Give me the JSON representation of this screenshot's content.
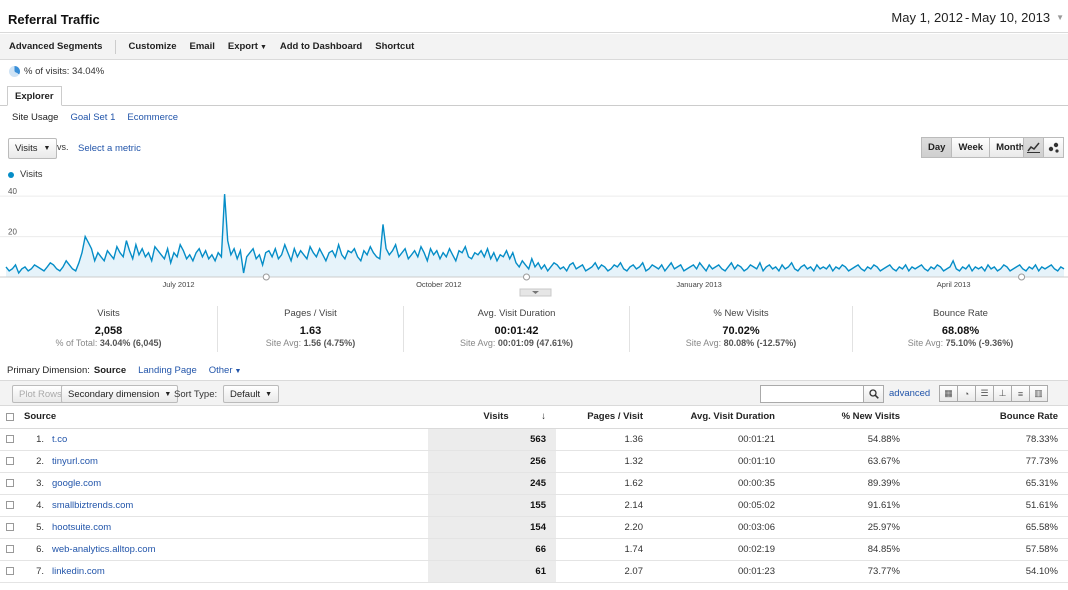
{
  "header": {
    "title": "Referral Traffic",
    "date_start": "May 1, 2012",
    "date_sep": "-",
    "date_end": "May 10, 2013"
  },
  "toolbar": {
    "advanced_segments": "Advanced Segments",
    "customize": "Customize",
    "email": "Email",
    "export": "Export",
    "add_to_dashboard": "Add to Dashboard",
    "shortcut": "Shortcut"
  },
  "segment_info": {
    "text": "% of visits: 34.04%"
  },
  "tabs": {
    "explorer": "Explorer"
  },
  "subtabs": {
    "site_usage": "Site Usage",
    "goal_set": "Goal Set 1",
    "ecommerce": "Ecommerce"
  },
  "controls": {
    "metric": "Visits",
    "vs": "vs.",
    "select_metric": "Select a metric",
    "day": "Day",
    "week": "Week",
    "month": "Month"
  },
  "chart_data": {
    "type": "line",
    "series": [
      {
        "name": "Visits"
      }
    ],
    "y_ticks": [
      "40",
      "20"
    ],
    "ylim": [
      0,
      46
    ],
    "x_tick_labels": [
      "July 2012",
      "October 2012",
      "January 2013",
      "April 2013"
    ],
    "x_range": [
      "2012-05-01",
      "2013-05-10"
    ],
    "y": [
      5,
      3,
      4,
      6,
      2,
      4,
      5,
      3,
      4,
      6,
      5,
      4,
      3,
      5,
      7,
      6,
      4,
      3,
      5,
      8,
      6,
      4,
      3,
      7,
      12,
      20,
      17,
      14,
      8,
      12,
      10,
      8,
      13,
      11,
      9,
      15,
      12,
      10,
      18,
      13,
      9,
      16,
      11,
      14,
      10,
      12,
      8,
      15,
      13,
      11,
      9,
      14,
      7,
      12,
      10,
      16,
      13,
      9,
      11,
      8,
      12,
      14,
      10,
      13,
      9,
      11,
      8,
      12,
      10,
      41,
      18,
      11,
      14,
      9,
      13,
      2,
      10,
      12,
      14,
      9,
      11,
      6,
      12,
      13,
      10,
      14,
      9,
      11,
      16,
      12,
      8,
      14,
      10,
      13,
      11,
      9,
      15,
      12,
      10,
      14,
      11,
      8,
      12,
      13,
      10,
      16,
      11,
      9,
      13,
      12,
      14,
      10,
      8,
      13,
      11,
      15,
      12,
      10,
      9,
      26,
      14,
      11,
      13,
      16,
      10,
      12,
      14,
      9,
      11,
      13,
      10,
      15,
      12,
      8,
      14,
      11,
      13,
      9,
      12,
      10,
      14,
      11,
      8,
      13,
      12,
      15,
      10,
      9,
      12,
      11,
      13,
      10,
      14,
      9,
      12,
      8,
      11,
      10,
      13,
      9,
      12,
      7,
      5,
      8,
      6,
      4,
      9,
      5,
      7,
      4,
      6,
      3,
      5,
      7,
      6,
      4,
      5,
      3,
      6,
      7,
      4,
      5,
      6,
      3,
      4,
      5,
      7,
      4,
      6,
      5,
      3,
      4,
      6,
      5,
      7,
      4,
      3,
      5,
      6,
      4,
      5,
      7,
      3,
      4,
      6,
      5,
      4,
      6,
      3,
      5,
      7,
      4,
      5,
      6,
      3,
      4,
      5,
      6,
      4,
      7,
      5,
      3,
      6,
      4,
      5,
      6,
      4,
      3,
      5,
      7,
      4,
      6,
      5,
      3,
      4,
      6,
      5,
      4,
      7,
      3,
      5,
      6,
      4,
      5,
      3,
      6,
      4,
      5,
      7,
      4,
      3,
      5,
      6,
      4,
      5,
      3,
      6,
      4,
      5,
      4,
      6,
      3,
      5,
      4,
      6,
      5,
      3,
      4,
      5,
      6,
      4,
      3,
      5,
      4,
      6,
      5,
      3,
      4,
      5,
      6,
      4,
      3,
      5,
      4,
      6,
      3,
      5,
      4,
      5,
      6,
      4,
      3,
      5,
      4,
      6,
      5,
      3,
      4,
      5,
      8,
      4,
      3,
      5,
      4,
      6,
      3,
      5,
      4,
      5,
      3,
      6,
      4,
      5,
      3,
      4,
      6,
      5,
      3,
      4,
      5,
      6,
      4,
      3,
      5,
      4,
      6,
      3,
      5,
      4,
      5,
      6,
      4,
      3,
      5,
      4
    ]
  },
  "scorecards": [
    {
      "label": "Visits",
      "value": "2,058",
      "sub_prefix": "% of Total: ",
      "sub_value": "34.04% (6,045)"
    },
    {
      "label": "Pages / Visit",
      "value": "1.63",
      "sub_prefix": "Site Avg: ",
      "sub_value": "1.56 (4.75%)"
    },
    {
      "label": "Avg. Visit Duration",
      "value": "00:01:42",
      "sub_prefix": "Site Avg: ",
      "sub_value": "00:01:09 (47.61%)"
    },
    {
      "label": "% New Visits",
      "value": "70.02%",
      "sub_prefix": "Site Avg: ",
      "sub_value": "80.08% (-12.57%)"
    },
    {
      "label": "Bounce Rate",
      "value": "68.08%",
      "sub_prefix": "Site Avg: ",
      "sub_value": "75.10% (-9.36%)"
    }
  ],
  "primary_dimension": {
    "label": "Primary Dimension:",
    "current": "Source",
    "landing_page": "Landing Page",
    "other": "Other"
  },
  "table_tools": {
    "plot_rows": "Plot Rows",
    "secondary_dimension": "Secondary dimension",
    "sort_type_label": "Sort Type:",
    "sort_type_value": "Default",
    "advanced": "advanced"
  },
  "table": {
    "columns": [
      "Source",
      "Visits",
      "Pages / Visit",
      "Avg. Visit Duration",
      "% New Visits",
      "Bounce Rate"
    ],
    "rows": [
      {
        "num": "1.",
        "source": "t.co",
        "visits": "563",
        "ppv": "1.36",
        "dur": "00:01:21",
        "new": "54.88%",
        "bounce": "78.33%"
      },
      {
        "num": "2.",
        "source": "tinyurl.com",
        "visits": "256",
        "ppv": "1.32",
        "dur": "00:01:10",
        "new": "63.67%",
        "bounce": "77.73%"
      },
      {
        "num": "3.",
        "source": "google.com",
        "visits": "245",
        "ppv": "1.62",
        "dur": "00:00:35",
        "new": "89.39%",
        "bounce": "65.31%"
      },
      {
        "num": "4.",
        "source": "smallbiztrends.com",
        "visits": "155",
        "ppv": "2.14",
        "dur": "00:05:02",
        "new": "91.61%",
        "bounce": "51.61%"
      },
      {
        "num": "5.",
        "source": "hootsuite.com",
        "visits": "154",
        "ppv": "2.20",
        "dur": "00:03:06",
        "new": "25.97%",
        "bounce": "65.58%"
      },
      {
        "num": "6.",
        "source": "web-analytics.alltop.com",
        "visits": "66",
        "ppv": "1.74",
        "dur": "00:02:19",
        "new": "84.85%",
        "bounce": "57.58%"
      },
      {
        "num": "7.",
        "source": "linkedin.com",
        "visits": "61",
        "ppv": "2.07",
        "dur": "00:01:23",
        "new": "73.77%",
        "bounce": "54.10%"
      }
    ]
  },
  "colors": {
    "series": "#058dc7",
    "area": "#e6f3fa",
    "link": "#2255aa"
  }
}
